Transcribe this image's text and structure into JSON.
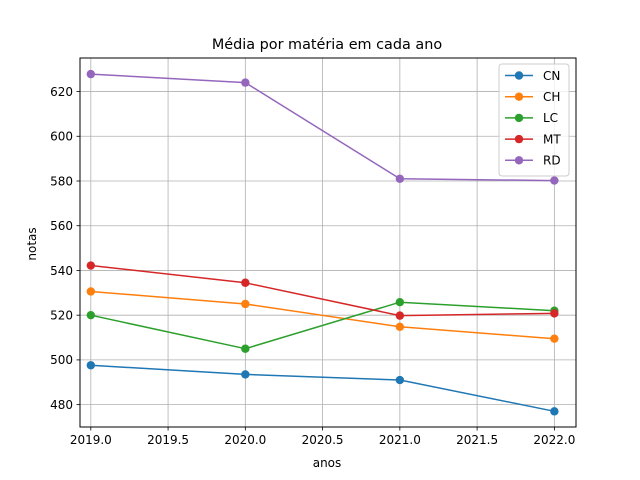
{
  "chart_data": {
    "type": "line",
    "title": "Média por matéria em cada ano",
    "xlabel": "anos",
    "ylabel": "notas",
    "x": [
      2019,
      2020,
      2021,
      2022
    ],
    "xlim": [
      2018.93,
      2022.14
    ],
    "ylim": [
      470,
      635
    ],
    "xticks": [
      2019.0,
      2019.5,
      2020.0,
      2020.5,
      2021.0,
      2021.5,
      2022.0
    ],
    "xtick_labels": [
      "2019.0",
      "2019.5",
      "2020.0",
      "2020.5",
      "2021.0",
      "2021.5",
      "2022.0"
    ],
    "yticks": [
      480,
      500,
      520,
      540,
      560,
      580,
      600,
      620
    ],
    "ytick_labels": [
      "480",
      "500",
      "520",
      "540",
      "560",
      "580",
      "600",
      "620"
    ],
    "grid": true,
    "legend_position": "top-right",
    "series": [
      {
        "name": "CN",
        "color": "#1f77b4",
        "values": [
          497.6,
          493.5,
          491.0,
          477.0
        ]
      },
      {
        "name": "CH",
        "color": "#ff7f0e",
        "values": [
          530.6,
          525.0,
          514.8,
          509.5
        ]
      },
      {
        "name": "LC",
        "color": "#2ca02c",
        "values": [
          520.0,
          505.0,
          525.8,
          522.0
        ]
      },
      {
        "name": "MT",
        "color": "#d62728",
        "values": [
          542.2,
          534.5,
          519.8,
          520.8
        ]
      },
      {
        "name": "RD",
        "color": "#9467bd",
        "values": [
          627.8,
          624.0,
          581.0,
          580.2
        ]
      }
    ]
  }
}
